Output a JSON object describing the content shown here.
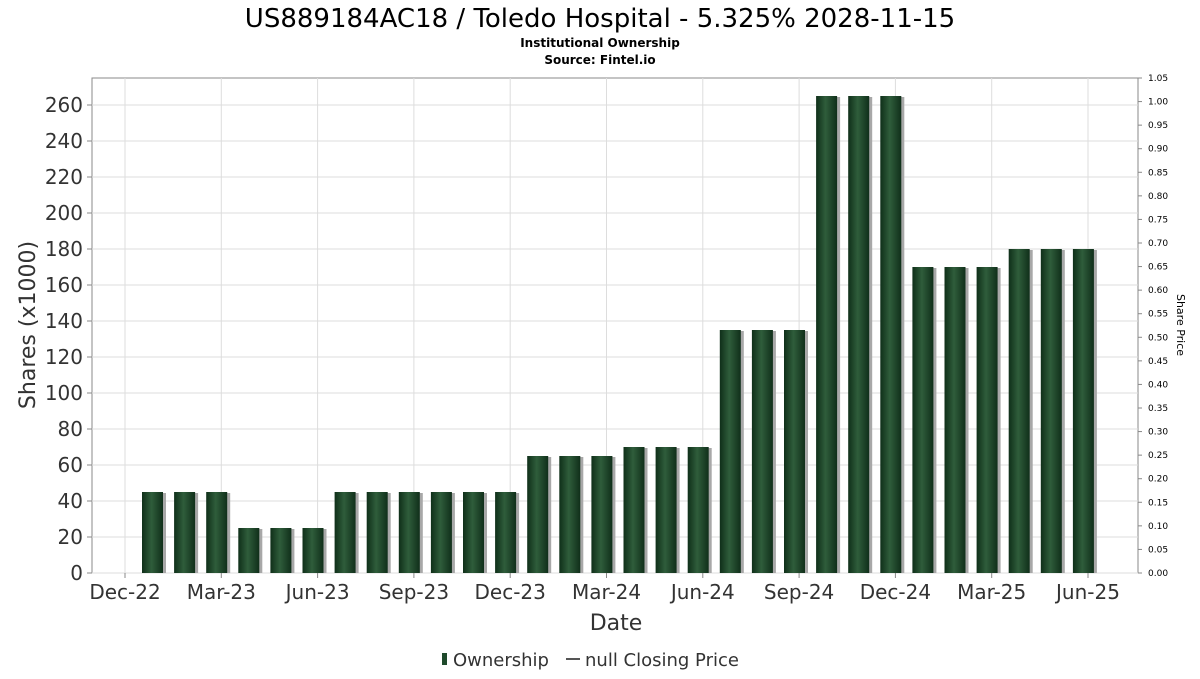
{
  "chart_data": {
    "type": "bar",
    "title": "US889184AC18 / Toledo Hospital - 5.325% 2028-11-15",
    "subtitle": "Institutional Ownership",
    "source": "Source: Fintel.io",
    "xlabel": "Date",
    "ylabel": "Shares (x1000)",
    "y2label": "Share Price",
    "ylim": [
      0,
      275
    ],
    "y2lim": [
      0,
      1.05
    ],
    "yticks": [
      "0",
      "20",
      "40",
      "60",
      "80",
      "100",
      "120",
      "140",
      "160",
      "180",
      "200",
      "220",
      "240",
      "260"
    ],
    "y2ticks": [
      "0.00",
      "0.05",
      "0.10",
      "0.15",
      "0.20",
      "0.25",
      "0.30",
      "0.35",
      "0.40",
      "0.45",
      "0.50",
      "0.55",
      "0.60",
      "0.65",
      "0.70",
      "0.75",
      "0.80",
      "0.85",
      "0.90",
      "0.95",
      "1.00",
      "1.05"
    ],
    "xticks": [
      "Dec-22",
      "Mar-23",
      "Jun-23",
      "Sep-23",
      "Dec-23",
      "Mar-24",
      "Jun-24",
      "Sep-24",
      "Dec-24",
      "Mar-25",
      "Jun-25"
    ],
    "grid": true,
    "legend_position": "bottom",
    "series": [
      {
        "name": "Ownership",
        "color": "#1f4a2c",
        "values": [
          45,
          45,
          45,
          25,
          25,
          25,
          45,
          45,
          45,
          45,
          45,
          45,
          65,
          65,
          65,
          70,
          70,
          70,
          135,
          135,
          135,
          265,
          265,
          265,
          170,
          170,
          170,
          180,
          180,
          180
        ]
      },
      {
        "name": "null Closing Price",
        "color": "#555555",
        "values": []
      }
    ]
  }
}
